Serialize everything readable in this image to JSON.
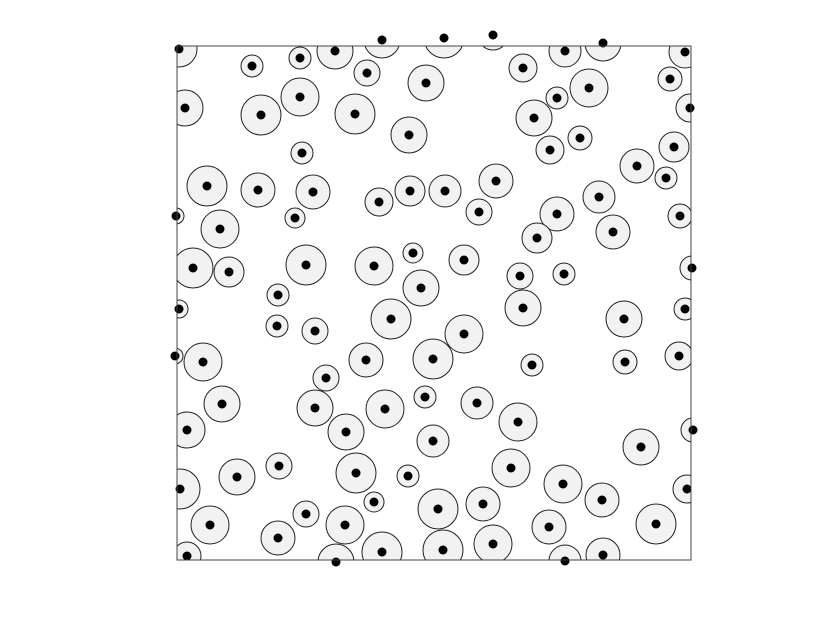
{
  "chart_data": {
    "type": "scatter",
    "xlim": [
      0,
      514
    ],
    "ylim": [
      0,
      514
    ],
    "x": [
      2,
      75,
      123,
      158,
      205,
      267,
      316,
      388,
      426,
      508,
      190,
      249,
      346,
      412,
      380,
      493,
      8,
      84,
      123,
      178,
      357,
      513,
      232,
      403,
      373,
      497,
      125,
      30,
      81,
      136,
      202,
      233,
      268,
      319,
      460,
      489,
      118,
      302,
      380,
      422,
      503,
      -1,
      43,
      360,
      436,
      16,
      52,
      129,
      197,
      236,
      287,
      343,
      387,
      515,
      101,
      244,
      346,
      508,
      2,
      100,
      138,
      214,
      287,
      447,
      -2,
      26,
      149,
      189,
      256,
      355,
      448,
      502,
      45,
      138,
      208,
      248,
      300,
      341,
      10,
      169,
      256,
      464,
      516,
      102,
      60,
      179,
      231,
      334,
      386,
      3,
      510,
      197,
      129,
      261,
      306,
      425,
      33,
      168,
      372,
      479,
      101,
      205,
      266,
      316,
      426,
      388,
      159,
      10
    ],
    "y": [
      511,
      494,
      502,
      509,
      520,
      522,
      525,
      509,
      517,
      508,
      487,
      477,
      492,
      472,
      462,
      481,
      452,
      445,
      463,
      446,
      442,
      452,
      425,
      422,
      410,
      413,
      407,
      374,
      370,
      368,
      358,
      369,
      369,
      379,
      394,
      382,
      342,
      348,
      346,
      363,
      344,
      344,
      331,
      322,
      328,
      292,
      288,
      295,
      294,
      307,
      300,
      284,
      286,
      292,
      265,
      272,
      252,
      251,
      251,
      234,
      229,
      241,
      226,
      241,
      204,
      198,
      182,
      200,
      201,
      195,
      198,
      204,
      156,
      152,
      151,
      163,
      157,
      138,
      130,
      128,
      119,
      113,
      130,
      94,
      83,
      87,
      84,
      92,
      76,
      71,
      71,
      58,
      46,
      51,
      56,
      60,
      35,
      35,
      33,
      36,
      22,
      8,
      10,
      16,
      5,
      -1,
      -2,
      4
    ],
    "sizes": [
      18,
      11,
      11,
      18,
      18,
      20,
      15,
      16,
      18,
      16,
      13,
      18,
      14,
      19,
      11,
      12,
      18,
      20,
      19,
      20,
      18,
      14,
      18,
      12,
      14,
      15,
      11,
      20,
      17,
      17,
      14,
      15,
      16,
      17,
      17,
      11,
      10,
      13,
      17,
      16,
      12,
      8,
      19,
      15,
      17,
      20,
      15,
      20,
      19,
      10,
      15,
      13,
      11,
      12,
      11,
      18,
      18,
      11,
      9,
      11,
      13,
      20,
      19,
      18,
      8,
      19,
      13,
      17,
      20,
      11,
      12,
      14,
      18,
      18,
      19,
      11,
      16,
      19,
      18,
      18,
      16,
      18,
      12,
      13,
      18,
      20,
      11,
      19,
      19,
      20,
      14,
      10,
      13,
      20,
      17,
      17,
      19,
      19,
      17,
      20,
      17,
      20,
      20,
      19,
      17,
      16,
      18,
      14
    ],
    "color": "#f2f2f2",
    "edge_color": "#222222",
    "dot_color": "#000000"
  }
}
